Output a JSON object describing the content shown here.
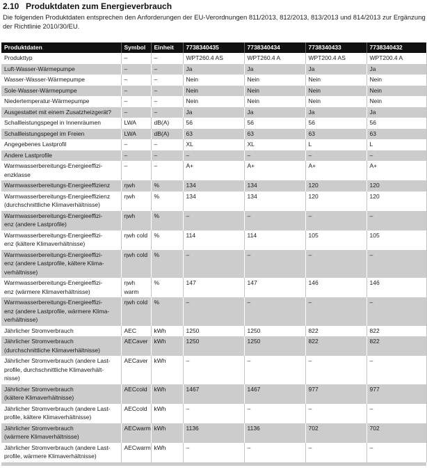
{
  "page": {
    "section_number": "2.10",
    "title": "Produktdaten zum Energieverbrauch",
    "intro": "Die folgenden Produktdaten entsprechen den Anforderungen der EU-Verordnungen 811/2013, 812/2013, 813/2013 und 814/2013 zur Ergänzung\nder Richtlinie 2010/30/EU."
  },
  "colors": {
    "header_bg": "#111111",
    "shaded_row_bg": "#cccccc",
    "text": "#1a1a1a"
  },
  "table": {
    "headers": [
      "Produktdaten",
      "Symbol",
      "Einheit",
      "7738340435",
      "7738340434",
      "7738340433",
      "7738340432"
    ],
    "rows": [
      {
        "label": "Produkttyp",
        "symbol": "–",
        "unit": "–",
        "values": [
          "WPT260.4 AS",
          "WPT260.4 A",
          "WPT200.4 AS",
          "WPT200.4 A"
        ]
      },
      {
        "label": "Luft-Wasser-Wärmepumpe",
        "symbol": "–",
        "unit": "–",
        "values": [
          "Ja",
          "Ja",
          "Ja",
          "Ja"
        ]
      },
      {
        "label": "Wasser-Wasser-Wärmepumpe",
        "symbol": "–",
        "unit": "–",
        "values": [
          "Nein",
          "Nein",
          "Nein",
          "Nein"
        ]
      },
      {
        "label": "Sole-Wasser-Wärmepumpe",
        "symbol": "–",
        "unit": "–",
        "values": [
          "Nein",
          "Nein",
          "Nein",
          "Nein"
        ]
      },
      {
        "label": "Niedertemperatur-Wärmepumpe",
        "symbol": "–",
        "unit": "–",
        "values": [
          "Nein",
          "Nein",
          "Nein",
          "Nein"
        ]
      },
      {
        "label": "Ausgestattet mit einem Zusatzheizgerät?",
        "symbol": "–",
        "unit": "–",
        "values": [
          "Ja",
          "Ja",
          "Ja",
          "Ja"
        ]
      },
      {
        "label": "Schallleistungspegel in Innenräumen",
        "symbol": "LWA",
        "unit": "dB(A)",
        "values": [
          "56",
          "56",
          "56",
          "56"
        ]
      },
      {
        "label": "Schallleistungspegel im Freien",
        "symbol": "LWA",
        "unit": "dB(A)",
        "values": [
          "63",
          "63",
          "63",
          "63"
        ]
      },
      {
        "label": "Angegebenes Lastprofil",
        "symbol": "–",
        "unit": "–",
        "values": [
          "XL",
          "XL",
          "L",
          "L"
        ]
      },
      {
        "label": "Andere Lastprofile",
        "symbol": "–",
        "unit": "–",
        "values": [
          "–",
          "–",
          "–",
          "–"
        ]
      },
      {
        "label": "Warmwasserbereitungs-Energieeffizi-\nenzklasse",
        "symbol": "–",
        "unit": "–",
        "values": [
          "A+",
          "A+",
          "A+",
          "A+"
        ]
      },
      {
        "label": "Warmwasserbereitungs-Energieeffizienz",
        "symbol": "ηwh",
        "unit": "%",
        "values": [
          "134",
          "134",
          "120",
          "120"
        ]
      },
      {
        "label": "Warmwasserbereitungs-Energieeffizienz\n(durchschnittliche Klimaverhältnisse)",
        "symbol": "ηwh",
        "unit": "%",
        "values": [
          "134",
          "134",
          "120",
          "120"
        ]
      },
      {
        "label": "Warmwasserbereitungs-Energieeffizi-\nenz (andere Lastprofile)",
        "symbol": "ηwh",
        "unit": "%",
        "values": [
          "–",
          "–",
          "–",
          "–"
        ]
      },
      {
        "label": "Warmwasserbereitungs-Energieeffizi-\nenz (kältere Klimaverhältnisse)",
        "symbol": "ηwh cold",
        "unit": "%",
        "values": [
          "114",
          "114",
          "105",
          "105"
        ]
      },
      {
        "label": "Warmwasserbereitungs-Energieeffizi-\nenz (andere Lastprofile, kältere Klima-\nverhältnisse)",
        "symbol": "ηwh cold",
        "unit": "%",
        "values": [
          "–",
          "–",
          "–",
          "–"
        ]
      },
      {
        "label": "Warmwasserbereitungs-Energieeffizi-\nenz (wärmere Klimaverhältnisse)",
        "symbol": "ηwh warm",
        "unit": "%",
        "values": [
          "147",
          "147",
          "146",
          "146"
        ]
      },
      {
        "label": "Warmwasserbereitungs-Energieeffizi-\nenz (andere Lastprofile, wärmere Klima-\nverhältnisse)",
        "symbol": "ηwh cold",
        "unit": "%",
        "values": [
          "–",
          "–",
          "–",
          "–"
        ]
      },
      {
        "label": "Jährlicher Stromverbrauch",
        "symbol": "AEC",
        "unit": "kWh",
        "values": [
          "1250",
          "1250",
          "822",
          "822"
        ]
      },
      {
        "label": "Jährlicher Stromverbrauch\n(durchschnittliche Klimaverhältnisse)",
        "symbol": "AECaver",
        "unit": "kWh",
        "values": [
          "1250",
          "1250",
          "822",
          "822"
        ]
      },
      {
        "label": "Jährlicher Stromverbrauch (andere Last-\nprofile, durchschnittliche Klimaverhält-\nnisse)",
        "symbol": "AECaver",
        "unit": "kWh",
        "values": [
          "–",
          "–",
          "–",
          "–"
        ]
      },
      {
        "label": "Jährlicher Stromverbrauch\n(kältere Klimaverhältnisse)",
        "symbol": "AECcold",
        "unit": "kWh",
        "values": [
          "1467",
          "1467",
          "977",
          "977"
        ]
      },
      {
        "label": "Jährlicher Stromverbrauch (andere Last-\nprofile, kältere Klimaverhältnisse)",
        "symbol": "AECcold",
        "unit": "kWh",
        "values": [
          "–",
          "–",
          "–",
          "–"
        ]
      },
      {
        "label": "Jährlicher Stromverbrauch\n(wärmere Klimaverhältnisse)",
        "symbol": "AECwarm",
        "unit": "kWh",
        "values": [
          "1136",
          "1136",
          "702",
          "702"
        ]
      },
      {
        "label": "Jährlicher Stromverbrauch (andere Last-\nprofile, wärmere Klimaverhältnisse)",
        "symbol": "AECwarm",
        "unit": "kWh",
        "values": [
          "–",
          "–",
          "–",
          "–"
        ]
      }
    ]
  }
}
